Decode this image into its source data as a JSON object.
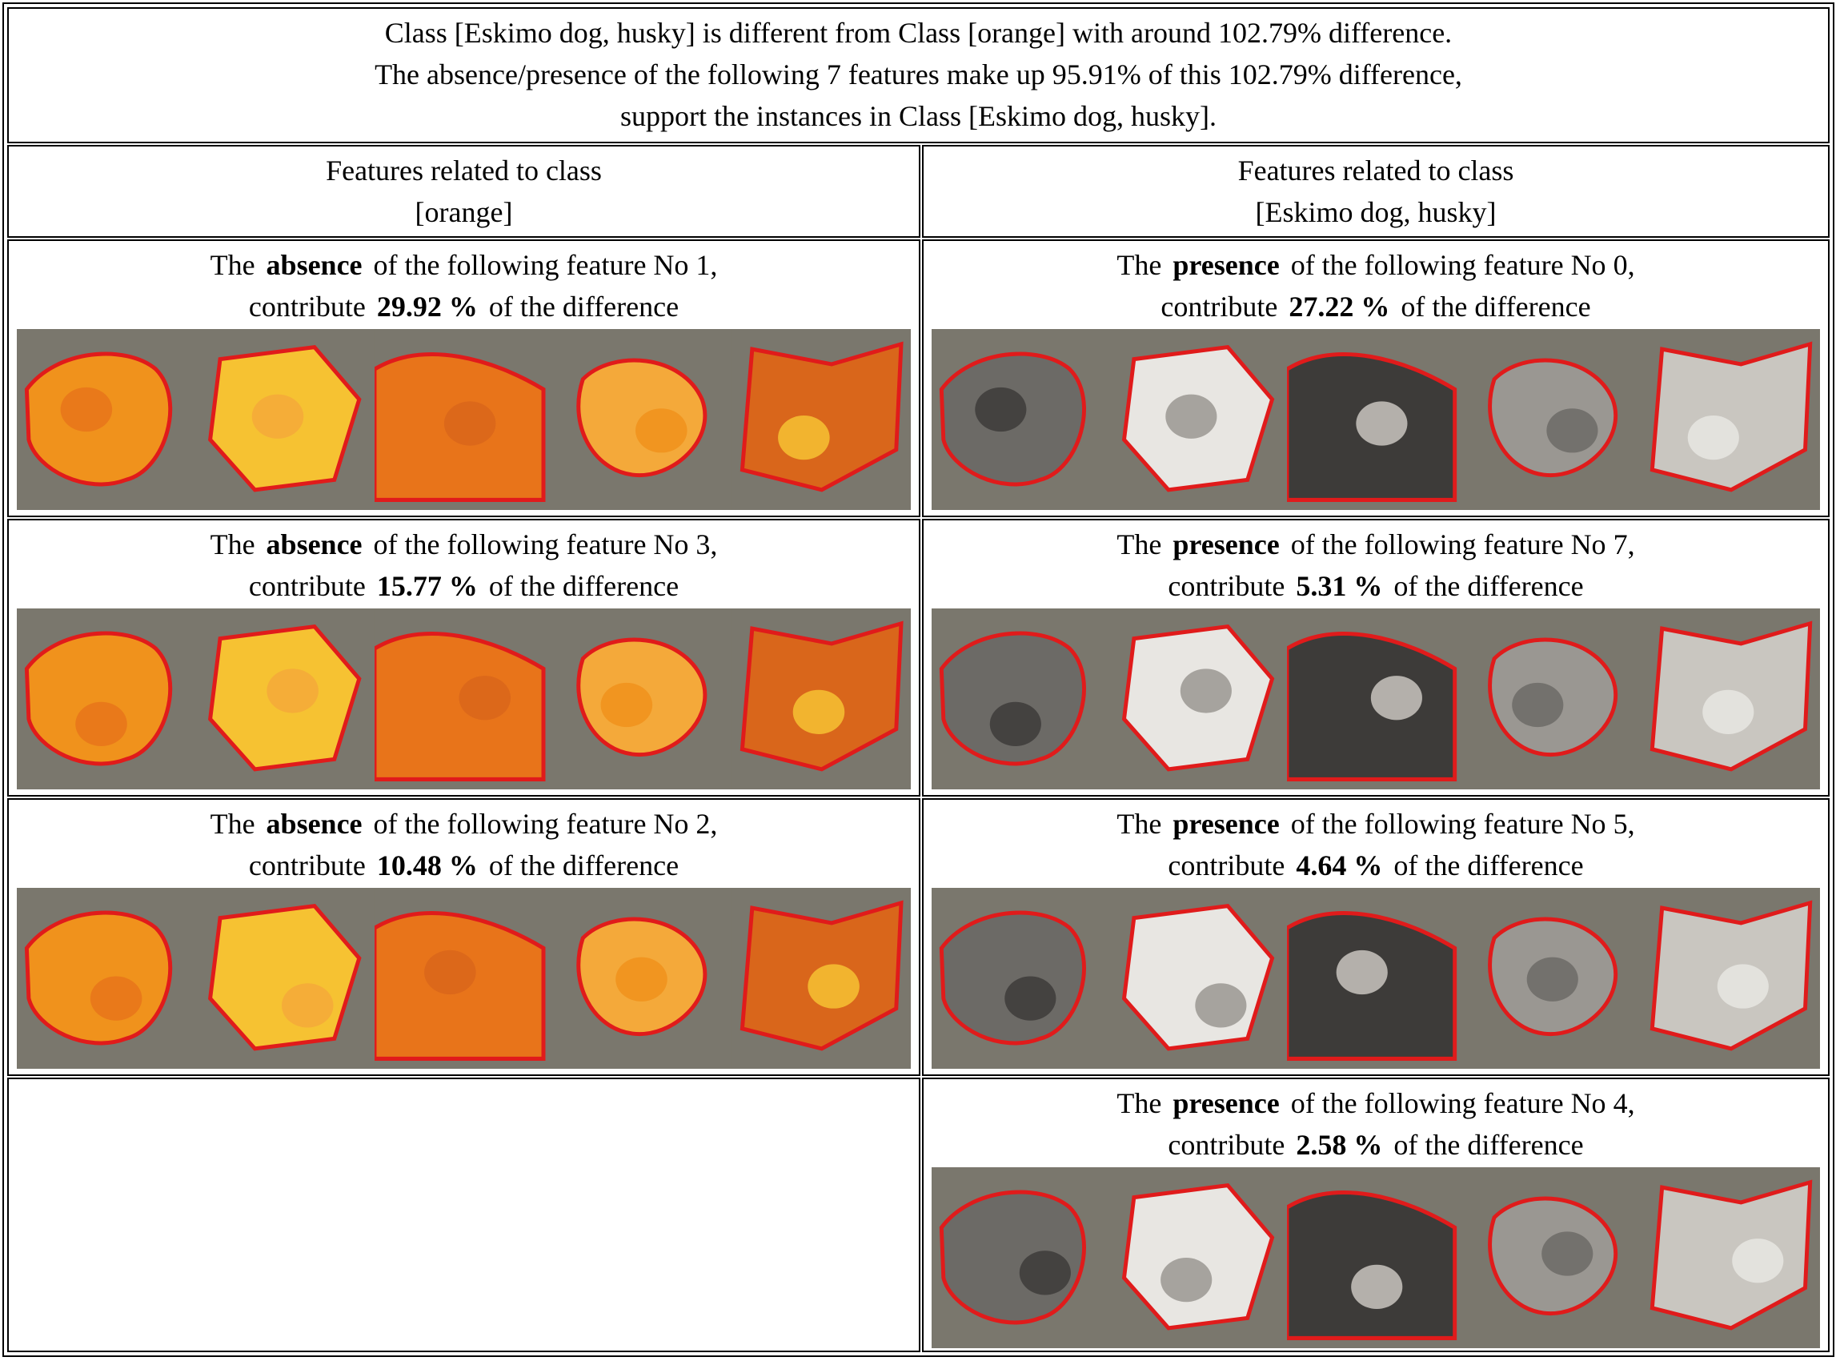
{
  "header": {
    "line1": "Class [Eskimo dog, husky] is different from Class [orange] with around 102.79% difference.",
    "line2": "The absence/presence of the following 7 features make up 95.91% of this 102.79% difference,",
    "line3": "support the instances in Class [Eskimo dog, husky]."
  },
  "columns": {
    "left": {
      "line1": "Features related to class",
      "line2": "[orange]"
    },
    "right": {
      "line1": "Features related to class",
      "line2": "[Eskimo dog, husky]"
    }
  },
  "text": {
    "the": "The",
    "of_following": "of the following feature No",
    "contribute": "contribute",
    "of_difference": "of the difference"
  },
  "left_features": [
    {
      "mode": "absence",
      "number": "1,",
      "percent": "29.92 %",
      "thumbnails": [
        "orange-closeup",
        "orange-with-sticker",
        "lemons-pile",
        "oranges-pile",
        "oranges-on-branch"
      ]
    },
    {
      "mode": "absence",
      "number": "3,",
      "percent": "15.77 %",
      "thumbnails": [
        "orange-slices-plate",
        "orange-half",
        "orange-halves",
        "orange-segments",
        "orange-lemon-slices"
      ]
    },
    {
      "mode": "absence",
      "number": "2,",
      "percent": "10.48 %",
      "thumbnails": [
        "market-fruit-stand",
        "oranges-crate",
        "fruit-stall",
        "fruit-shelves",
        "orange-boxes"
      ]
    }
  ],
  "right_features": [
    {
      "mode": "presence",
      "number": "0,",
      "percent": "27.22 %",
      "thumbnails": [
        "husky-eyes",
        "husky-puppy",
        "husky-eye-closeup",
        "husky-blue-eyes",
        "husky-puppies"
      ]
    },
    {
      "mode": "presence",
      "number": "7,",
      "percent": "5.31 %",
      "thumbnails": [
        "husky-howling",
        "husky-open-mouth",
        "husky-head-tilt",
        "husky-snout",
        "husky-small-face"
      ]
    },
    {
      "mode": "presence",
      "number": "5,",
      "percent": "4.64 %",
      "thumbnails": [
        "husky-show-dog",
        "dog-in-crate",
        "dogs-pulling-sled",
        "dog-on-treadmill",
        "husky-lying"
      ]
    },
    {
      "mode": "presence",
      "number": "4,",
      "percent": "2.58 %",
      "thumbnails": [
        "white-husky-head",
        "white-dog-face",
        "white-dog-snow",
        "white-husky-closeup",
        "white-dogs-pair"
      ]
    }
  ],
  "palette": {
    "highlight_outline": "#e01b1b",
    "dim_overlay": "#7a776d",
    "orange": "#f0921c",
    "yellow": "#f6c232",
    "husky_gray": "#6c6a66",
    "husky_white": "#e8e6e2"
  }
}
